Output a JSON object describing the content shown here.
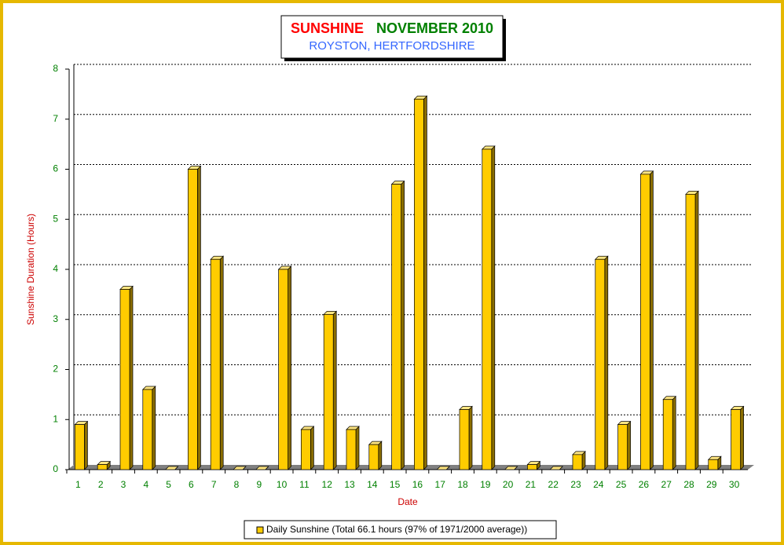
{
  "chart_data": {
    "type": "bar",
    "title_parts": [
      "SUNSHINE",
      "NOVEMBER 2010"
    ],
    "subtitle": "ROYSTON, HERTFORDSHIRE",
    "x_label": "Date",
    "y_label": "Sunshine Duration (Hours)",
    "categories": [
      "1",
      "2",
      "3",
      "4",
      "5",
      "6",
      "7",
      "8",
      "9",
      "10",
      "11",
      "12",
      "13",
      "14",
      "15",
      "16",
      "17",
      "18",
      "19",
      "20",
      "21",
      "22",
      "23",
      "24",
      "25",
      "26",
      "27",
      "28",
      "29",
      "30"
    ],
    "series": [
      {
        "name": "Daily Sunshine (Total 66.1 hours (97% of 1971/2000 average))",
        "color": "#ffcc00",
        "values": [
          0.9,
          0.1,
          3.6,
          1.6,
          0,
          6.0,
          4.2,
          0,
          0,
          4.0,
          0.8,
          3.1,
          0.8,
          0.5,
          5.7,
          7.4,
          0,
          1.2,
          6.4,
          0,
          0.1,
          0,
          0.3,
          4.2,
          0.9,
          5.9,
          1.4,
          5.5,
          0.2,
          1.2
        ]
      }
    ],
    "ylim": [
      0,
      8
    ],
    "yticks": [
      0,
      1,
      2,
      3,
      4,
      5,
      6,
      7,
      8
    ],
    "grid": true,
    "legend": "bottom"
  }
}
